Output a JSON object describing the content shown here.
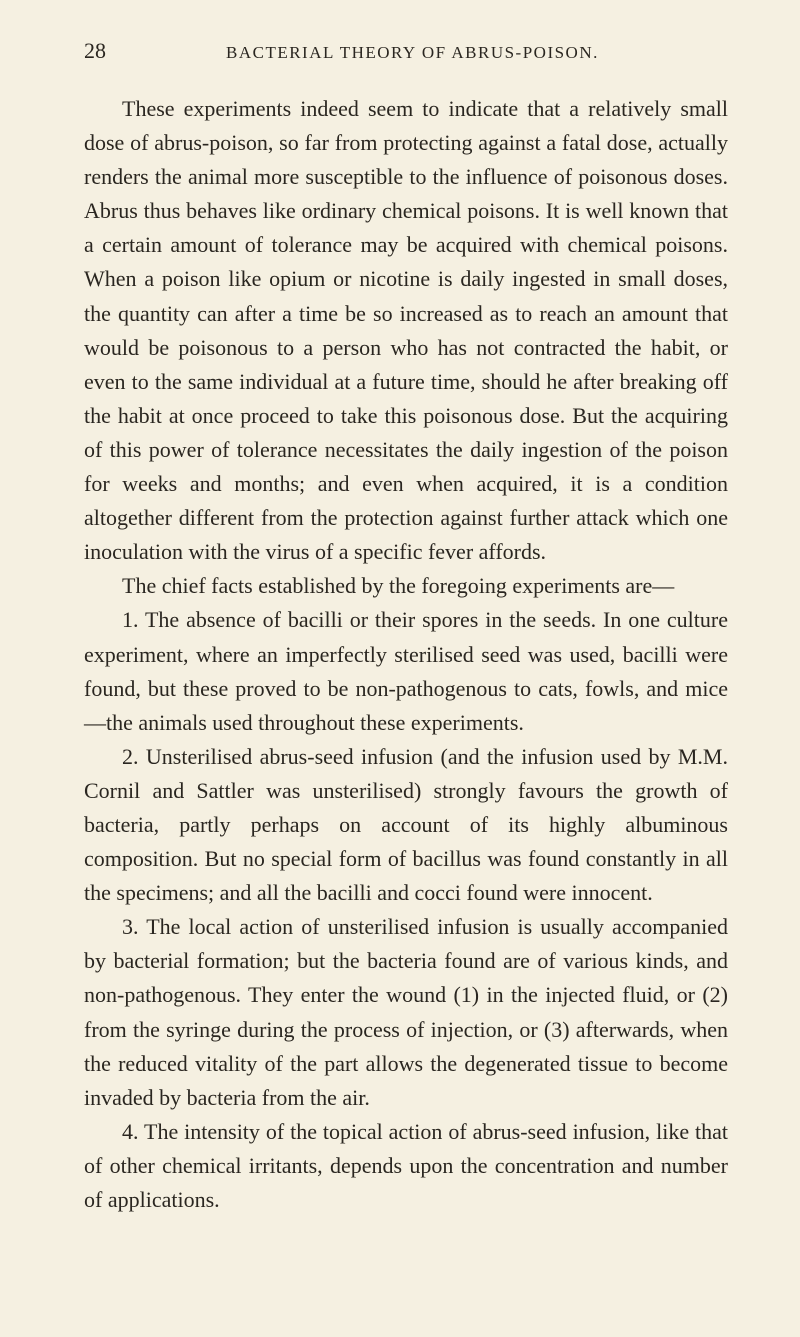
{
  "header": {
    "page_number": "28",
    "title": "BACTERIAL THEORY OF ABRUS-POISON."
  },
  "paragraphs": {
    "p1": "These experiments indeed seem to indicate that a relatively small dose of abrus-poison, so far from protecting against a fatal dose, actually renders the animal more susceptible to the influence of poisonous doses. Abrus thus behaves like ordinary chemical poisons. It is well known that a certain amount of tolerance may be acquired with chemical poisons. When a poison like opium or nicotine is daily ingested in small doses, the quantity can after a time be so increased as to reach an amount that would be poisonous to a person who has not contracted the habit, or even to the same individual at a future time, should he after breaking off the habit at once proceed to take this poisonous dose. But the acquiring of this power of tolerance necessitates the daily ingestion of the poison for weeks and months; and even when acquired, it is a condition altogether different from the protection against further attack which one inoculation with the virus of a specific fever affords.",
    "p2": "The chief facts established by the foregoing experiments are—",
    "item1": "1. The absence of bacilli or their spores in the seeds. In one culture experiment, where an imperfectly sterilised seed was used, bacilli were found, but these proved to be non-pathogenous to cats, fowls, and mice—the animals used throughout these experiments.",
    "item2": "2. Unsterilised abrus-seed infusion (and the infusion used by M.M. Cornil and Sattler was unsterilised) strongly favours the growth of bacteria, partly perhaps on account of its highly albuminous composition. But no special form of bacillus was found constantly in all the specimens; and all the bacilli and cocci found were innocent.",
    "item3": "3. The local action of unsterilised infusion is usually accompanied by bacterial formation; but the bacteria found are of various kinds, and non-pathogenous. They enter the wound (1) in the injected fluid, or (2) from the syringe during the process of injection, or (3) afterwards, when the reduced vitality of the part allows the degenerated tissue to become invaded by bacteria from the air.",
    "item4": "4. The intensity of the topical action of abrus-seed infusion, like that of other chemical irritants, depends upon the concentration and number of applications."
  },
  "colors": {
    "background": "#f5f0e1",
    "text": "#2a2620"
  },
  "typography": {
    "body_fontsize": 22,
    "header_fontsize": 17,
    "pagenum_fontsize": 22,
    "line_height": 1.55,
    "font_family": "Times New Roman"
  }
}
